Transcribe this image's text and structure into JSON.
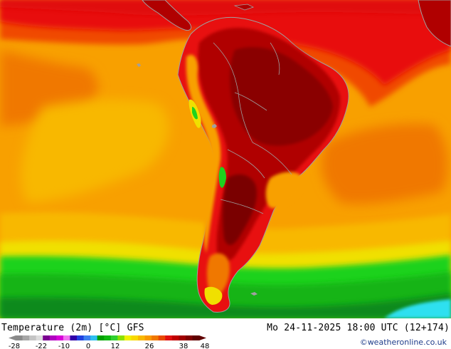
{
  "map": {
    "title": "Temperature (2m) [°C] GFS",
    "valid_time": "Mo 24-11-2025 18:00 UTC (12+174)",
    "credit": "©weatheronline.co.uk",
    "region": "South America",
    "colors": {
      "ocean_cold": "#2fe0f0",
      "deep_green": "#0a8a1a",
      "green": "#18b418",
      "bright_green": "#1ed21e",
      "yellow": "#f0e000",
      "light_orange": "#f8b800",
      "orange": "#f8a000",
      "dark_orange": "#f07800",
      "orange_red": "#f04a00",
      "red": "#e81010",
      "dark_red": "#b00000",
      "maroon": "#8a0000",
      "coastline": "#a0a0a0"
    }
  },
  "colorbar": {
    "tick_labels": [
      "-28",
      "-22",
      "-10",
      "0",
      "12",
      "26",
      "38",
      "48"
    ],
    "colors": [
      "#8a8a8a",
      "#a6a6a6",
      "#c4c4c4",
      "#dcdcdc",
      "#7a0090",
      "#b000c0",
      "#d800d8",
      "#f070f0",
      "#3000a8",
      "#2040e0",
      "#3a80f0",
      "#2ebff0",
      "#00a000",
      "#10b810",
      "#30d030",
      "#8ae000",
      "#f0f000",
      "#f8d800",
      "#f8b800",
      "#f89800",
      "#f07800",
      "#e84800",
      "#e01010",
      "#c00000",
      "#a00000",
      "#800000",
      "#600000"
    ]
  }
}
